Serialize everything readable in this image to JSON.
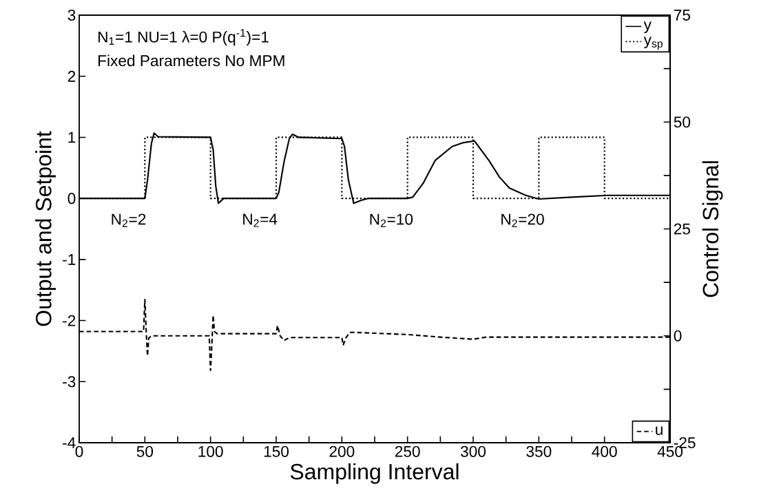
{
  "chart_data": {
    "type": "line",
    "xlabel": "Sampling Interval",
    "ylabel": "Output and Setpoint",
    "y2label": "Control Signal",
    "xlim": [
      0,
      450
    ],
    "ylim": [
      -4,
      3
    ],
    "y2lim": [
      -25,
      75
    ],
    "xticks": [
      0,
      {
        "value": 25,
        "label": null
      },
      50,
      {
        "value": 75,
        "label": null
      },
      100,
      {
        "value": 125,
        "label": null
      },
      150,
      {
        "value": 175,
        "label": null
      },
      200,
      {
        "value": 225,
        "label": null
      },
      250,
      {
        "value": 275,
        "label": null
      },
      300,
      {
        "value": 325,
        "label": null
      },
      350,
      {
        "value": 375,
        "label": null
      },
      400,
      {
        "value": 425,
        "label": null
      },
      450
    ],
    "yticks": [
      -4,
      -3,
      -2,
      -1,
      0,
      1,
      2,
      3
    ],
    "y2ticks": [
      -25,
      {
        "value": -12.5,
        "label": null
      },
      0,
      {
        "value": 12.5,
        "label": null
      },
      25,
      {
        "value": 37.5,
        "label": null
      },
      50,
      {
        "value": 62.5,
        "label": null
      },
      75
    ],
    "legend": "top right",
    "annotations": [
      "N$_{1}$=1    NU=1    λ=0    P(q$^{-1}$)=1",
      "Fixed Parameters      No MPM",
      "N$_{2}$=2",
      "N$_{2}$=4",
      "N$_{2}$=10",
      "N$_{2}$=20"
    ],
    "series": [
      {
        "name": "y",
        "color": "#000000",
        "line_style": "solid",
        "x": [
          0,
          50,
          52,
          55,
          57,
          60,
          100,
          102,
          104,
          106,
          110,
          150,
          152,
          156,
          160,
          162.5,
          167,
          200,
          202,
          205,
          209,
          215,
          220,
          250,
          254,
          262,
          271,
          284,
          292,
          301,
          312,
          320,
          327.5,
          340,
          350,
          375,
          402,
          450
        ],
        "values": [
          0,
          0,
          0.3,
          0.9,
          1.07,
          1.01,
          1.0,
          0.8,
          0.2,
          -0.08,
          0,
          0,
          0.1,
          0.6,
          0.98,
          1.05,
          1.0,
          0.98,
          0.85,
          0.3,
          -0.08,
          -0.03,
          0,
          0,
          0.02,
          0.25,
          0.62,
          0.85,
          0.91,
          0.94,
          0.62,
          0.35,
          0.17,
          0.05,
          -0.01,
          0.02,
          0.05,
          0.05
        ]
      },
      {
        "name": "y$_{sp}$",
        "type": "step",
        "color": "#000000",
        "line_style": "dotted",
        "x": [
          0,
          50,
          100,
          150,
          200,
          250,
          300,
          350,
          400,
          450
        ],
        "values": [
          0,
          1,
          0,
          1,
          0,
          1,
          0,
          1,
          0,
          0
        ]
      },
      {
        "name": "u",
        "axis": "y2",
        "color": "#000000",
        "line_style": "dashed",
        "x": [
          0,
          49,
          50,
          51,
          52,
          53,
          55,
          99,
          100,
          101,
          102,
          103,
          105,
          150,
          151,
          153,
          156,
          160,
          200,
          201,
          203,
          206,
          210,
          250,
          275,
          300,
          310,
          450
        ],
        "values": [
          1,
          1,
          8.5,
          1,
          -4.7,
          -0.5,
          0,
          0,
          -8.1,
          -2,
          4.8,
          1,
          0.5,
          0.5,
          2.4,
          0,
          -1.1,
          -0.4,
          -0.4,
          -2.2,
          -0.5,
          0.8,
          0.8,
          0.3,
          -0.3,
          -0.8,
          -0.3,
          -0.3
        ]
      }
    ]
  }
}
